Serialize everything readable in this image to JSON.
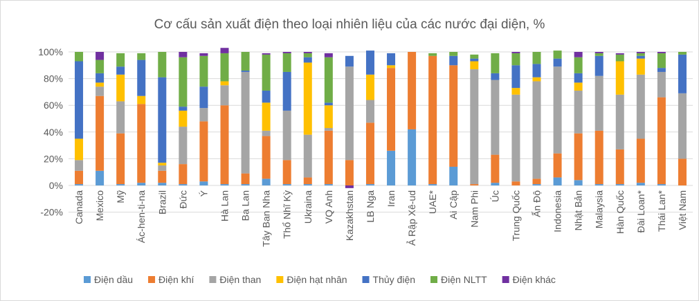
{
  "chart_data": {
    "type": "bar",
    "stacked": true,
    "title": "Cơ cấu sản xuất điện theo loại nhiên liệu của các nước đại diện, %",
    "xlabel": "",
    "ylabel": "",
    "ylim": [
      -20,
      100
    ],
    "yticks": [
      -20,
      0,
      20,
      40,
      60,
      80,
      100
    ],
    "ytick_labels": [
      "-20%",
      "0%",
      "20%",
      "40%",
      "60%",
      "80%",
      "100%"
    ],
    "grid": true,
    "legend_position": "bottom",
    "categories": [
      "Canada",
      "Mexico",
      "Mỹ",
      "Ác-hen-ti-na",
      "Brazil",
      "Đức",
      "Ý",
      "Hà Lan",
      "Ba Lan",
      "Tây Ban Nha",
      "Thổ Nhĩ Kỳ",
      "Ukraina",
      "VQ Anh",
      "Kazakhstan",
      "LB Nga",
      "Iran",
      "Ả Rập Xê-ud",
      "UAE*",
      "Ai Cập",
      "Nam Phi",
      "Úc",
      "Trung Quốc",
      "Ấn Độ",
      "Indonesia",
      "Nhật Bản",
      "Malaysia",
      "Hàn Quốc",
      "Đài Loan*",
      "Thái Lan*",
      "Việt Nam"
    ],
    "series": [
      {
        "name": "Điện dầu",
        "color": "#5b9bd5",
        "values": [
          1,
          11,
          1,
          2,
          2,
          1,
          3,
          1,
          1,
          5,
          1,
          1,
          1,
          0,
          1,
          26,
          42,
          1,
          14,
          0,
          2,
          0,
          1,
          6,
          4,
          1,
          1,
          2,
          1,
          0
        ]
      },
      {
        "name": "Điện khí",
        "color": "#ed7d31",
        "values": [
          10,
          56,
          38,
          59,
          9,
          15,
          45,
          59,
          8,
          32,
          18,
          5,
          40,
          19,
          46,
          62,
          58,
          96,
          76,
          1,
          21,
          3,
          4,
          18,
          35,
          40,
          26,
          33,
          65,
          20
        ]
      },
      {
        "name": "Điện than",
        "color": "#a5a5a5",
        "values": [
          8,
          7,
          24,
          0,
          4,
          28,
          10,
          15,
          76,
          4,
          37,
          32,
          2,
          70,
          17,
          0,
          0,
          0,
          0,
          86,
          56,
          65,
          73,
          65,
          32,
          41,
          41,
          48,
          19,
          49
        ]
      },
      {
        "name": "Điện hạt nhân",
        "color": "#ffc000",
        "values": [
          16,
          3,
          20,
          6,
          2,
          12,
          0,
          3,
          0,
          21,
          0,
          54,
          17,
          0,
          19,
          2,
          0,
          0,
          0,
          6,
          0,
          5,
          3,
          0,
          6,
          0,
          25,
          12,
          0,
          0
        ]
      },
      {
        "name": "Thủy điện",
        "color": "#4472c4",
        "values": [
          58,
          7,
          6,
          27,
          64,
          3,
          16,
          0,
          1,
          9,
          29,
          4,
          2,
          8,
          18,
          9,
          0,
          0,
          7,
          2,
          5,
          17,
          10,
          6,
          7,
          15,
          0,
          2,
          3,
          29
        ]
      },
      {
        "name": "Điện NLTT",
        "color": "#70ad47",
        "values": [
          7,
          10,
          10,
          5,
          19,
          37,
          23,
          21,
          14,
          27,
          14,
          3,
          34,
          0,
          0,
          0,
          0,
          2,
          3,
          3,
          15,
          9,
          9,
          6,
          12,
          2,
          5,
          2,
          11,
          2
        ]
      },
      {
        "name": "Điện khác",
        "color": "#7030a0",
        "values": [
          0,
          6,
          0,
          0,
          0,
          4,
          2,
          4,
          0,
          1,
          1,
          1,
          3,
          -2,
          0,
          0,
          0,
          0,
          0,
          0,
          0,
          1,
          0,
          0,
          4,
          1,
          1,
          1,
          1,
          0
        ]
      }
    ]
  }
}
